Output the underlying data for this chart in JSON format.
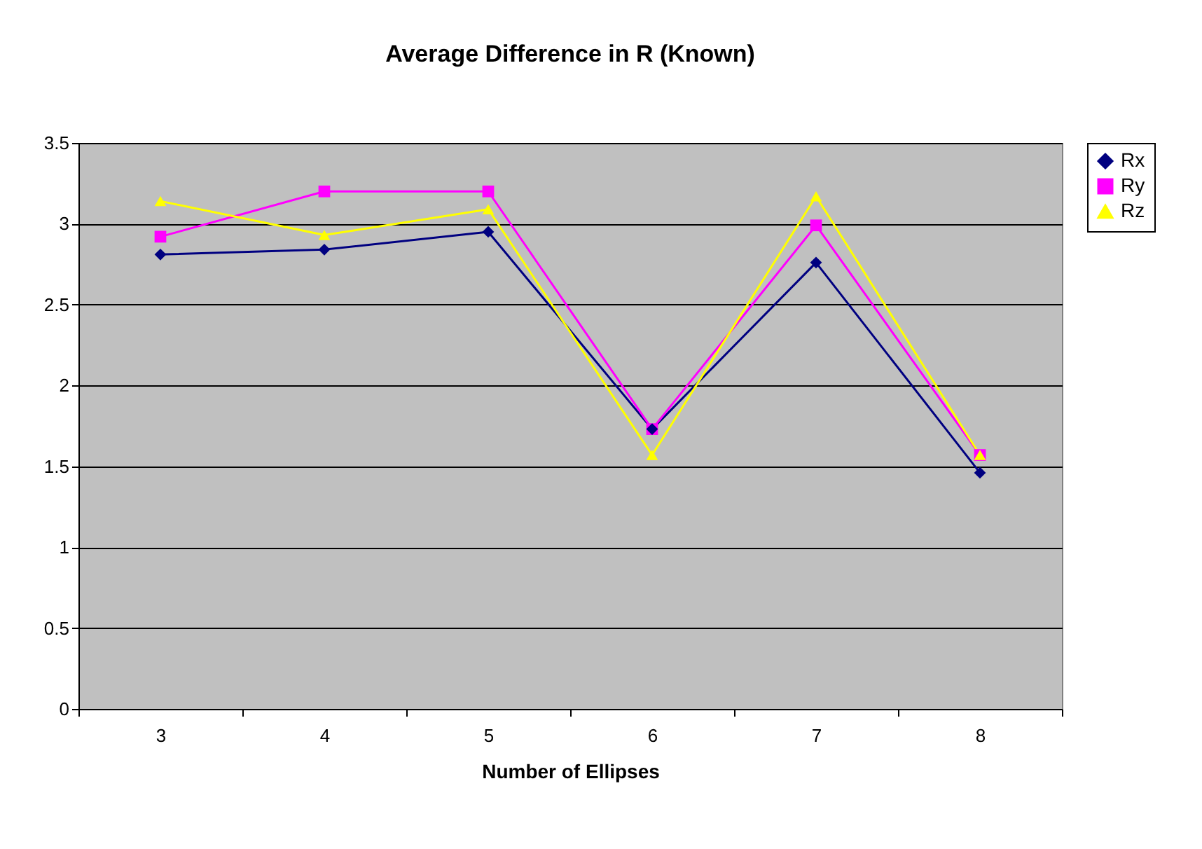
{
  "chart_data": {
    "type": "line",
    "title": "Average Difference in R (Known)",
    "xlabel": "Number of Ellipses",
    "categories": [
      "3",
      "4",
      "5",
      "6",
      "7",
      "8"
    ],
    "series": [
      {
        "name": "Rx",
        "color": "#000080",
        "marker": "diamond",
        "values": [
          2.81,
          2.84,
          2.95,
          1.73,
          2.76,
          1.46
        ]
      },
      {
        "name": "Ry",
        "color": "#ff00ff",
        "marker": "square",
        "values": [
          2.92,
          3.2,
          3.2,
          1.73,
          2.99,
          1.57
        ]
      },
      {
        "name": "Rz",
        "color": "#ffff00",
        "marker": "triangle",
        "values": [
          3.14,
          2.93,
          3.09,
          1.57,
          3.17,
          1.57
        ]
      }
    ],
    "ylim": [
      0,
      3.5
    ],
    "yticks": [
      0,
      0.5,
      1,
      1.5,
      2,
      2.5,
      3,
      3.5
    ],
    "grid": "y",
    "legend": "right",
    "line_style": "solid"
  }
}
